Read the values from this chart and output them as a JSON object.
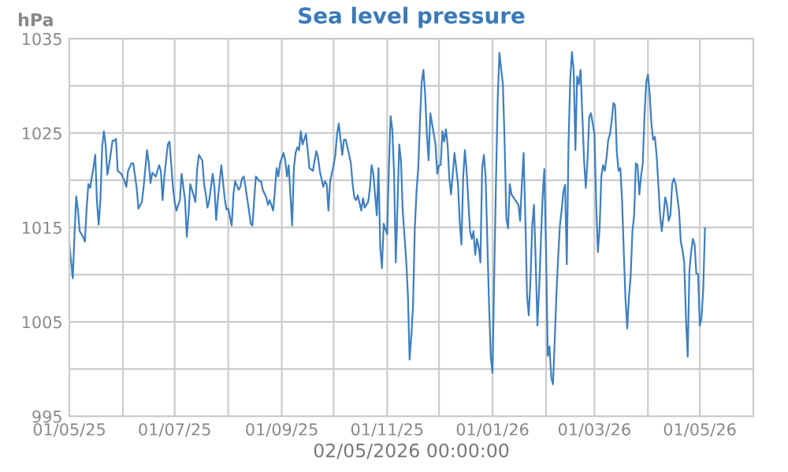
{
  "chart_data": {
    "type": "line",
    "title": "Sea level pressure",
    "ylabel": "hPa",
    "xlabel": "02/05/2026 00:00:00",
    "x": [
      "2025-05-01",
      "2025-05-03",
      "2025-05-04",
      "2025-05-05",
      "2025-05-06",
      "2025-05-07",
      "2025-05-09",
      "2025-05-10",
      "2025-05-11",
      "2025-05-12",
      "2025-05-13",
      "2025-05-15",
      "2025-05-16",
      "2025-05-17",
      "2025-05-18",
      "2025-05-19",
      "2025-05-20",
      "2025-05-21",
      "2025-05-22",
      "2025-05-23",
      "2025-05-24",
      "2025-05-26",
      "2025-05-27",
      "2025-05-28",
      "2025-05-29",
      "2025-05-31",
      "2025-06-02",
      "2025-06-03",
      "2025-06-04",
      "2025-06-06",
      "2025-06-07",
      "2025-06-09",
      "2025-06-10",
      "2025-06-12",
      "2025-06-13",
      "2025-06-15",
      "2025-06-16",
      "2025-06-17",
      "2025-06-18",
      "2025-06-20",
      "2025-06-22",
      "2025-06-23",
      "2025-06-24",
      "2025-06-25",
      "2025-06-27",
      "2025-06-28",
      "2025-06-29",
      "2025-06-30",
      "2025-07-01",
      "2025-07-02",
      "2025-07-04",
      "2025-07-05",
      "2025-07-07",
      "2025-07-08",
      "2025-07-09",
      "2025-07-10",
      "2025-07-11",
      "2025-07-13",
      "2025-07-14",
      "2025-07-15",
      "2025-07-17",
      "2025-07-18",
      "2025-07-19",
      "2025-07-20",
      "2025-07-21",
      "2025-07-23",
      "2025-07-24",
      "2025-07-25",
      "2025-07-26",
      "2025-07-28",
      "2025-07-30",
      "2025-07-31",
      "2025-08-01",
      "2025-08-03",
      "2025-08-04",
      "2025-08-05",
      "2025-08-07",
      "2025-08-08",
      "2025-08-09",
      "2025-08-10",
      "2025-08-11",
      "2025-08-13",
      "2025-08-14",
      "2025-08-15",
      "2025-08-16",
      "2025-08-17",
      "2025-08-19",
      "2025-08-20",
      "2025-08-21",
      "2025-08-23",
      "2025-08-24",
      "2025-08-25",
      "2025-08-27",
      "2025-08-28",
      "2025-08-29",
      "2025-08-30",
      "2025-08-31",
      "2025-09-02",
      "2025-09-03",
      "2025-09-04",
      "2025-09-05",
      "2025-09-07",
      "2025-09-08",
      "2025-09-09",
      "2025-09-10",
      "2025-09-11",
      "2025-09-12",
      "2025-09-13",
      "2025-09-15",
      "2025-09-16",
      "2025-09-17",
      "2025-09-19",
      "2025-09-20",
      "2025-09-21",
      "2025-09-22",
      "2025-09-23",
      "2025-09-25",
      "2025-09-26",
      "2025-09-27",
      "2025-09-28",
      "2025-09-29",
      "2025-10-01",
      "2025-10-02",
      "2025-10-03",
      "2025-10-04",
      "2025-10-06",
      "2025-10-07",
      "2025-10-08",
      "2025-10-10",
      "2025-10-11",
      "2025-10-12",
      "2025-10-13",
      "2025-10-14",
      "2025-10-15",
      "2025-10-17",
      "2025-10-18",
      "2025-10-19",
      "2025-10-21",
      "2025-10-22",
      "2025-10-23",
      "2025-10-24",
      "2025-10-26",
      "2025-10-27",
      "2025-10-28",
      "2025-10-29",
      "2025-10-30",
      "2025-11-01",
      "2025-11-02",
      "2025-11-03",
      "2025-11-04",
      "2025-11-05",
      "2025-11-06",
      "2025-11-07",
      "2025-11-08",
      "2025-11-09",
      "2025-11-10",
      "2025-11-12",
      "2025-11-13",
      "2025-11-14",
      "2025-11-15",
      "2025-11-16",
      "2025-11-17",
      "2025-11-18",
      "2025-11-19",
      "2025-11-20",
      "2025-11-21",
      "2025-11-22",
      "2025-11-23",
      "2025-11-24",
      "2025-11-25",
      "2025-11-26",
      "2025-11-27",
      "2025-11-29",
      "2025-11-30",
      "2025-12-01",
      "2025-12-02",
      "2025-12-03",
      "2025-12-04",
      "2025-12-05",
      "2025-12-06",
      "2025-12-07",
      "2025-12-08",
      "2025-12-10",
      "2025-12-11",
      "2025-12-12",
      "2025-12-13",
      "2025-12-14",
      "2025-12-15",
      "2025-12-16",
      "2025-12-17",
      "2025-12-19",
      "2025-12-20",
      "2025-12-21",
      "2025-12-22",
      "2025-12-23",
      "2025-12-24",
      "2025-12-25",
      "2025-12-26",
      "2025-12-27",
      "2025-12-28",
      "2025-12-30",
      "2025-12-31",
      "2026-01-01",
      "2026-01-02",
      "2026-01-03",
      "2026-01-04",
      "2026-01-05",
      "2026-01-06",
      "2026-01-07",
      "2026-01-08",
      "2026-01-09",
      "2026-01-10",
      "2026-01-11",
      "2026-01-12",
      "2026-01-16",
      "2026-01-17",
      "2026-01-18",
      "2026-01-19",
      "2026-01-20",
      "2026-01-21",
      "2026-01-22",
      "2026-01-23",
      "2026-01-24",
      "2026-01-25",
      "2026-01-26",
      "2026-01-27",
      "2026-01-28",
      "2026-01-29",
      "2026-01-30",
      "2026-01-31",
      "2026-02-01",
      "2026-02-02",
      "2026-02-03",
      "2026-02-04",
      "2026-02-05",
      "2026-02-06",
      "2026-02-07",
      "2026-02-08",
      "2026-02-09",
      "2026-02-10",
      "2026-02-11",
      "2026-02-12",
      "2026-02-13",
      "2026-02-14",
      "2026-02-15",
      "2026-02-16",
      "2026-02-17",
      "2026-02-18",
      "2026-02-19",
      "2026-02-20",
      "2026-02-21",
      "2026-02-22",
      "2026-02-23",
      "2026-02-24",
      "2026-02-25",
      "2026-02-26",
      "2026-02-27",
      "2026-03-01",
      "2026-03-02",
      "2026-03-03",
      "2026-03-04",
      "2026-03-05",
      "2026-03-06",
      "2026-03-07",
      "2026-03-08",
      "2026-03-09",
      "2026-03-10",
      "2026-03-11",
      "2026-03-12",
      "2026-03-13",
      "2026-03-14",
      "2026-03-15",
      "2026-03-16",
      "2026-03-17",
      "2026-03-18",
      "2026-03-19",
      "2026-03-20",
      "2026-03-21",
      "2026-03-22",
      "2026-03-23",
      "2026-03-24",
      "2026-03-25",
      "2026-03-26",
      "2026-03-27",
      "2026-03-28",
      "2026-03-29",
      "2026-03-30",
      "2026-03-31",
      "2026-04-01",
      "2026-04-02",
      "2026-04-03",
      "2026-04-04",
      "2026-04-05",
      "2026-04-06",
      "2026-04-07",
      "2026-04-08",
      "2026-04-09",
      "2026-04-10",
      "2026-04-11",
      "2026-04-12",
      "2026-04-13",
      "2026-04-14",
      "2026-04-15",
      "2026-04-16",
      "2026-04-17",
      "2026-04-18",
      "2026-04-19",
      "2026-04-20",
      "2026-04-21",
      "2026-04-22",
      "2026-04-23",
      "2026-04-24",
      "2026-04-25",
      "2026-04-26",
      "2026-04-27",
      "2026-04-28",
      "2026-04-29",
      "2026-04-30",
      "2026-05-01",
      "2026-05-02",
      "2026-05-03",
      "2026-05-04"
    ],
    "series": [
      {
        "color": "#3f7fbf",
        "values": [
          1013.3,
          1009.6,
          1014.3,
          1018.3,
          1016.8,
          1014.6,
          1014,
          1013.5,
          1017,
          1019.6,
          1019.2,
          1021.4,
          1022.7,
          1017.7,
          1015.3,
          1018,
          1023.5,
          1025.2,
          1023.8,
          1020.6,
          1021.6,
          1024.2,
          1024.2,
          1024.4,
          1021,
          1020.7,
          1019.9,
          1019.3,
          1021,
          1021.8,
          1021.8,
          1019.2,
          1017,
          1017.7,
          1019.3,
          1023.2,
          1021.8,
          1019.7,
          1020.8,
          1020.4,
          1021.6,
          1021,
          1017.9,
          1020.4,
          1023.8,
          1024.1,
          1021.6,
          1019.2,
          1017.7,
          1016.8,
          1017.9,
          1020.7,
          1017.9,
          1014,
          1016.3,
          1019.6,
          1019,
          1017.7,
          1021.2,
          1022.7,
          1022.1,
          1019.6,
          1018.5,
          1017.1,
          1017.9,
          1020.7,
          1019.3,
          1015.8,
          1018,
          1021.6,
          1018,
          1016.9,
          1017,
          1015.2,
          1018.5,
          1019.9,
          1019,
          1019.3,
          1020.2,
          1020.4,
          1019.3,
          1016.8,
          1015.4,
          1015.2,
          1017.9,
          1020.4,
          1019.9,
          1019.9,
          1019,
          1018.2,
          1017.4,
          1017.9,
          1016.8,
          1018.8,
          1021.3,
          1020.4,
          1021.8,
          1022.9,
          1022.1,
          1020.4,
          1021.6,
          1015.2,
          1021.3,
          1022.9,
          1023.5,
          1023.2,
          1025.2,
          1023.8,
          1024.9,
          1023.2,
          1021.3,
          1021,
          1022.1,
          1023.1,
          1022.4,
          1021,
          1019.3,
          1019.9,
          1019.6,
          1016.8,
          1019.9,
          1021.6,
          1022.7,
          1024.9,
          1026,
          1022.7,
          1024.3,
          1024.3,
          1022.7,
          1021.8,
          1019.6,
          1018.2,
          1017.9,
          1018.4,
          1016.8,
          1018.1,
          1017.1,
          1017.7,
          1019.1,
          1021.6,
          1020.7,
          1016.3,
          1021.3,
          1012.9,
          1010.7,
          1015.4,
          1014.3,
          1021.3,
          1026.8,
          1025.4,
          1020.7,
          1011.3,
          1017.4,
          1023.8,
          1022.1,
          1016.8,
          1011.6,
          1007.9,
          1001,
          1003.5,
          1006.8,
          1014.9,
          1018.8,
          1021.3,
          1026.3,
          1030.4,
          1031.7,
          1029.1,
          1024.9,
          1022.1,
          1027.1,
          1026,
          1023.8,
          1020.7,
          1021.6,
          1021.6,
          1025.2,
          1024.1,
          1025.4,
          1023.8,
          1020.2,
          1018.5,
          1022.9,
          1021.3,
          1019.6,
          1015.7,
          1013.2,
          1020.2,
          1023.2,
          1021,
          1014.6,
          1013.8,
          1014.6,
          1012.1,
          1013.8,
          1012.9,
          1011.3,
          1021.3,
          1022.7,
          1020.4,
          1006.8,
          1001.3,
          999.6,
          1010.1,
          1019.9,
          1028.5,
          1033.5,
          1031.8,
          1030.2,
          1024.1,
          1016,
          1014.9,
          1019.6,
          1018.5,
          1017.4,
          1015.7,
          1019.6,
          1022.9,
          1016,
          1007.7,
          1005.7,
          1009.6,
          1015.2,
          1017.4,
          1011.3,
          1004.6,
          1008.5,
          1013.5,
          1018.2,
          1021.2,
          1012.4,
          1001.4,
          1002.4,
          999.1,
          998.4,
          1002.9,
          1007.9,
          1011.8,
          1015.2,
          1016.8,
          1018.8,
          1019.5,
          1011.1,
          1023.8,
          1030.7,
          1033.6,
          1031.6,
          1023.2,
          1031,
          1030.2,
          1031.7,
          1026.9,
          1022.1,
          1019.2,
          1022.1,
          1026.7,
          1027.1,
          1024.9,
          1017.7,
          1012.4,
          1014.9,
          1020.4,
          1021.6,
          1021,
          1022.4,
          1024.3,
          1024.9,
          1026.3,
          1028.2,
          1027.9,
          1022.9,
          1021,
          1021.3,
          1017.9,
          1012.4,
          1007.4,
          1004.3,
          1007.7,
          1009.9,
          1014.6,
          1016.3,
          1021.8,
          1021.6,
          1018.5,
          1020.4,
          1021.8,
          1026.9,
          1030.4,
          1031.2,
          1029.1,
          1026,
          1024.3,
          1024.6,
          1022.7,
          1019.6,
          1016.3,
          1014.6,
          1016.3,
          1018.2,
          1017.4,
          1015.7,
          1016.3,
          1019.6,
          1020.2,
          1019.6,
          1018.2,
          1016.8,
          1013.5,
          1012.6,
          1011.3,
          1005.4,
          1001.3,
          1010.4,
          1012.4,
          1013.8,
          1013.2,
          1010.1,
          1010.1,
          1004.6,
          1005.4,
          1008.5,
          1014.9
        ]
      }
    ],
    "xlim": [
      "2025-05-01",
      "2026-06-01"
    ],
    "xticks": [
      {
        "value": "2025-05-01",
        "label": "01/05/25"
      },
      {
        "value": "2025-06-01",
        "label": null
      },
      {
        "value": "2025-07-01",
        "label": "01/07/25"
      },
      {
        "value": "2025-08-01",
        "label": null
      },
      {
        "value": "2025-09-01",
        "label": "01/09/25"
      },
      {
        "value": "2025-10-01",
        "label": null
      },
      {
        "value": "2025-11-01",
        "label": "01/11/25"
      },
      {
        "value": "2025-12-01",
        "label": null
      },
      {
        "value": "2026-01-01",
        "label": "01/01/26"
      },
      {
        "value": "2026-02-01",
        "label": null
      },
      {
        "value": "2026-03-01",
        "label": "01/03/26"
      },
      {
        "value": "2026-04-01",
        "label": null
      },
      {
        "value": "2026-05-01",
        "label": "01/05/26"
      },
      {
        "value": "2026-06-01",
        "label": null
      }
    ],
    "ylim": [
      995,
      1035
    ],
    "yticks": [
      995,
      {
        "value": 1000,
        "label": null
      },
      1005,
      {
        "value": 1010,
        "label": null
      },
      1015,
      {
        "value": 1020,
        "label": null
      },
      1025,
      {
        "value": 1030,
        "label": null
      },
      1035
    ],
    "grid": true,
    "legend": false,
    "marker": "none",
    "line_style": "solid"
  }
}
